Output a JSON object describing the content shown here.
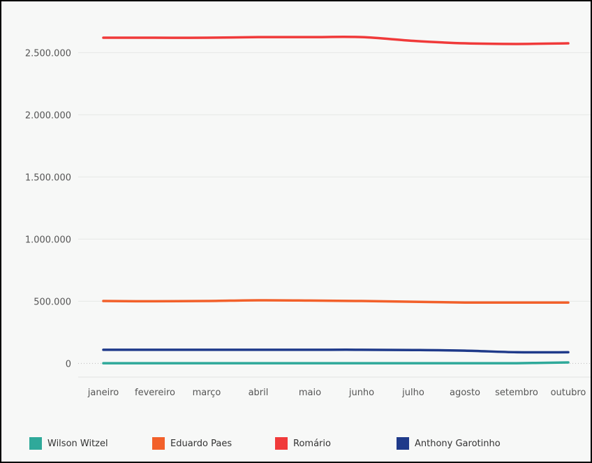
{
  "chart_data": {
    "type": "line",
    "title": "",
    "xlabel": "",
    "ylabel": "",
    "categories": [
      "janeiro",
      "fevereiro",
      "março",
      "abril",
      "maio",
      "junho",
      "julho",
      "agosto",
      "setembro",
      "outubro"
    ],
    "yticks": [
      0,
      500000,
      1000000,
      1500000,
      2000000,
      2500000
    ],
    "ytick_labels": [
      "0",
      "500.000",
      "1.000.000",
      "1.500.000",
      "2.000.000",
      "2.500.000"
    ],
    "ylim": [
      -110000,
      2800000
    ],
    "grid": true,
    "legend_position": "bottom",
    "series": [
      {
        "name": "Wilson Witzel",
        "color": "#2fa99a",
        "values": [
          2000,
          2000,
          2000,
          2000,
          2000,
          2000,
          2000,
          2000,
          2000,
          8000
        ]
      },
      {
        "name": "Eduardo Paes",
        "color": "#f2602a",
        "values": [
          502000,
          500000,
          502000,
          508000,
          506000,
          502000,
          496000,
          490000,
          490000,
          490000
        ]
      },
      {
        "name": "Romário",
        "color": "#f03a3a",
        "values": [
          2620000,
          2620000,
          2620000,
          2625000,
          2625000,
          2625000,
          2595000,
          2575000,
          2570000,
          2575000
        ]
      },
      {
        "name": "Anthony Garotinho",
        "color": "#1f3a8a",
        "values": [
          110000,
          110000,
          110000,
          110000,
          110000,
          110000,
          108000,
          103000,
          90000,
          90000
        ]
      }
    ]
  }
}
